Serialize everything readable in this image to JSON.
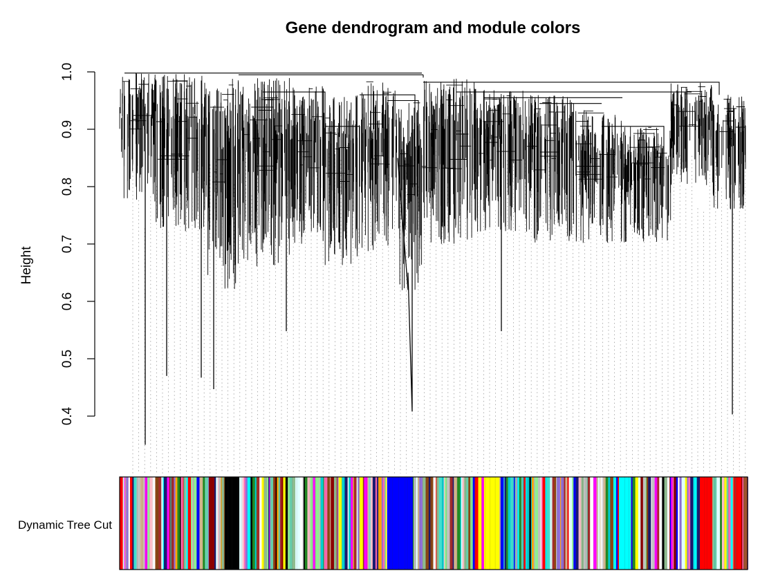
{
  "chart_data": {
    "type": "dendrogram",
    "title": "Gene dendrogram and module colors",
    "ylabel": "Height",
    "ylim": [
      0.3,
      1.0
    ],
    "yticks": [
      0.4,
      0.5,
      0.6,
      0.7,
      0.8,
      0.9,
      1.0
    ],
    "ytick_labels": [
      "0.4",
      "0.5",
      "0.6",
      "0.7",
      "0.8",
      "0.9",
      "1.0"
    ],
    "color_row_label": "Dynamic Tree Cut",
    "grid": false,
    "top_merge_heights": [
      0.982,
      0.995,
      0.982,
      0.978
    ],
    "deep_branch_minima": [
      0.35,
      0.47,
      0.467,
      0.447,
      0.548,
      0.408,
      0.548,
      0.403
    ],
    "module_colors": [
      "#0000ff",
      "#000000",
      "#8b0000",
      "#ff0000",
      "#00ffff",
      "#ffff00",
      "#ff69b4",
      "#228b22",
      "#8b4513",
      "#90ee90",
      "#40e0d0",
      "#9370db",
      "#e0ffff",
      "#ffa500",
      "#191970",
      "#d2b48c",
      "#ff00ff",
      "#66cdaa",
      "#a52a2a",
      "#c0c0c0",
      "#8fbc8f",
      "#00ced1",
      "#ffc0cb",
      "#ffffff"
    ]
  }
}
